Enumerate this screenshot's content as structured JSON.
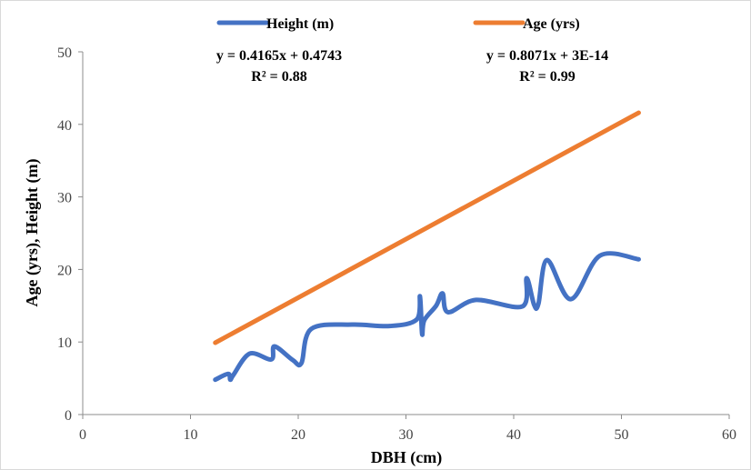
{
  "chart_data": {
    "type": "line",
    "title": "",
    "xlabel": "DBH (cm)",
    "ylabel": "Age (yrs), Height (m)",
    "xlim": [
      0,
      60
    ],
    "ylim": [
      0,
      50
    ],
    "xticks": [
      0,
      10,
      20,
      30,
      40,
      50,
      60
    ],
    "yticks": [
      0,
      10,
      20,
      30,
      40,
      50
    ],
    "grid": false,
    "legend": "top",
    "series": [
      {
        "name": "Height (m)",
        "color": "#4472C4",
        "x": [
          12.3,
          13.5,
          13.7,
          14.0,
          15.5,
          17.5,
          17.8,
          19.5,
          20.3,
          21.2,
          25.0,
          28.5,
          31.0,
          31.3,
          31.5,
          31.7,
          32.8,
          33.4,
          33.9,
          36.5,
          40.8,
          41.2,
          41.9,
          42.3,
          43.1,
          45.3,
          48.0,
          51.6
        ],
        "values": [
          4.8,
          5.6,
          4.8,
          5.5,
          8.4,
          7.6,
          9.4,
          7.5,
          7.1,
          11.8,
          12.4,
          12.2,
          13.1,
          16.3,
          11.1,
          13.0,
          15.0,
          16.7,
          14.1,
          15.8,
          14.9,
          18.8,
          15.1,
          15.3,
          21.3,
          15.9,
          21.9,
          21.4
        ]
      },
      {
        "name": "Age (yrs)",
        "color": "#ED7D31",
        "x": [
          12.3,
          51.6
        ],
        "values": [
          9.9,
          41.6
        ]
      }
    ],
    "annotations": [
      {
        "series": "Height (m)",
        "equation": "y = 0.4165x + 0.4743",
        "r2": "R² = 0.88"
      },
      {
        "series": "Age (yrs)",
        "equation": "y = 0.8071x + 3E-14",
        "r2": "R² = 0.99"
      }
    ]
  }
}
